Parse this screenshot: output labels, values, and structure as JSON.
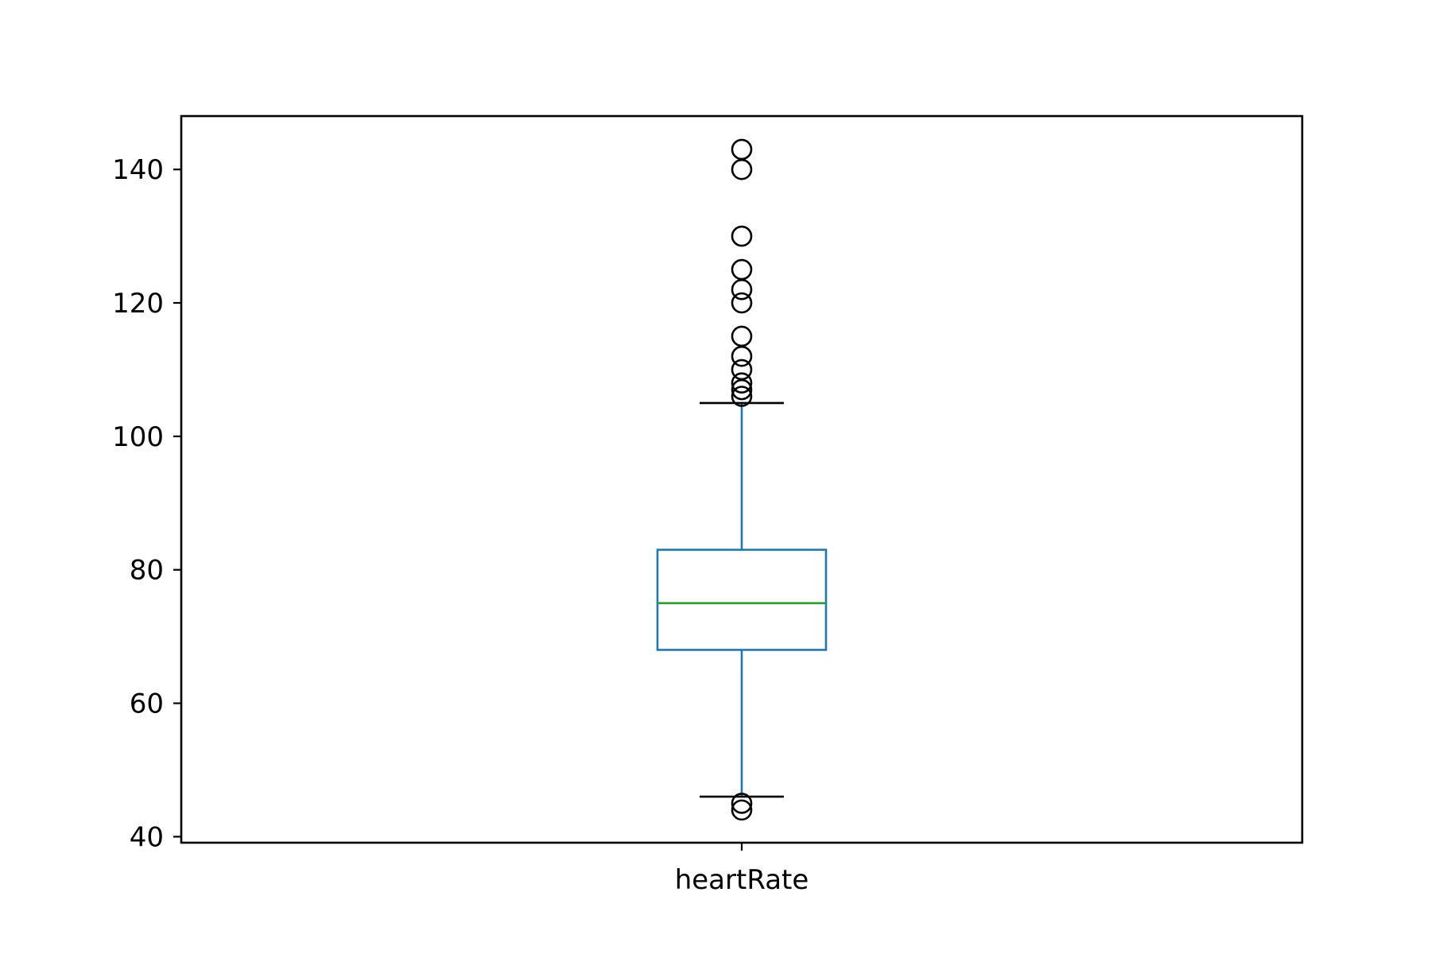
{
  "chart_data": {
    "type": "box",
    "categories": [
      "heartRate"
    ],
    "box": {
      "name": "heartRate",
      "q1": 68,
      "median": 75,
      "q3": 83,
      "whisker_low": 46,
      "whisker_high": 105,
      "outliers": [
        143,
        140,
        130,
        125,
        122,
        120,
        115,
        112,
        110,
        108,
        107,
        106,
        45,
        44
      ]
    },
    "yticks": [
      40,
      60,
      80,
      100,
      120,
      140
    ],
    "ylim": [
      39.1,
      148
    ],
    "grid": false,
    "colors": {
      "box": "#1f77b4",
      "median": "#2ca02c",
      "caps": "#000000",
      "outlier": "#000000",
      "axes": "#000000"
    }
  }
}
